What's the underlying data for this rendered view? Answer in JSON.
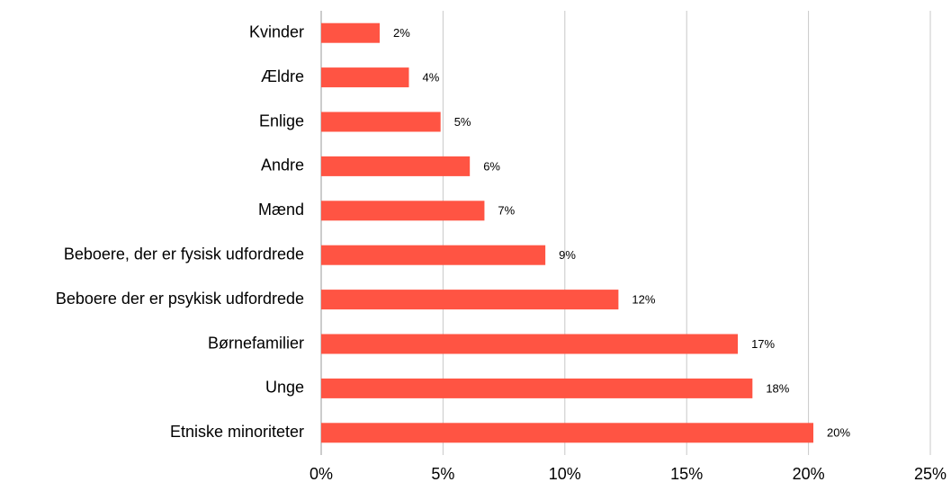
{
  "chart_data": {
    "type": "barh",
    "categories": [
      "Kvinder",
      "Ældre",
      "Enlige",
      "Andre",
      "Mænd",
      "Beboere, der er fysisk udfordrede",
      "Beboere der er psykisk udfordrede",
      "Børnefamilier",
      "Unge",
      "Etniske minoriteter"
    ],
    "values": [
      2.4,
      3.6,
      4.9,
      6.1,
      6.7,
      9.2,
      12.2,
      17.1,
      17.7,
      20.2
    ],
    "value_labels": [
      "2%",
      "4%",
      "5%",
      "6%",
      "7%",
      "9%",
      "12%",
      "17%",
      "18%",
      "20%"
    ],
    "color": "#ff5443",
    "xlim": [
      0,
      25
    ],
    "xticks": [
      {
        "value": 0,
        "label": "0%"
      },
      {
        "value": 5,
        "label": "5%"
      },
      {
        "value": 10,
        "label": "10%"
      },
      {
        "value": 15,
        "label": "15%"
      },
      {
        "value": 20,
        "label": "20%"
      },
      {
        "value": 25,
        "label": "25%"
      }
    ],
    "grid": true
  }
}
